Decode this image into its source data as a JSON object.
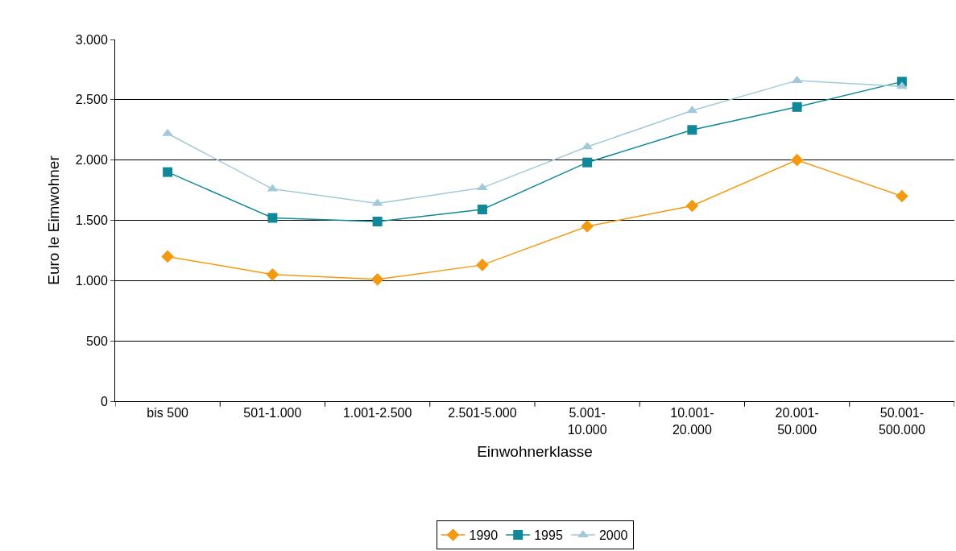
{
  "chart_data": {
    "type": "line",
    "xlabel": "Einwohnerklasse",
    "ylabel": "Euro le Eimwohner",
    "categories": [
      "bis 500",
      "501-1.000",
      "1.001-2.500",
      "2.501-5.000",
      "5.001-10.000",
      "10.001-20.000",
      "20.001-50.000",
      "50.001-500.000"
    ],
    "series": [
      {
        "name": "1990",
        "color": "#f39a12",
        "marker": "diamond",
        "values": [
          1200,
          1050,
          1010,
          1130,
          1450,
          1620,
          2000,
          1700
        ]
      },
      {
        "name": "1995",
        "color": "#10889a",
        "marker": "square",
        "values": [
          1900,
          1520,
          1490,
          1590,
          1980,
          2250,
          2440,
          2650
        ]
      },
      {
        "name": "2000",
        "color": "#a3c9d8",
        "marker": "triangle",
        "values": [
          2220,
          1760,
          1640,
          1770,
          2110,
          2410,
          2660,
          2610
        ]
      }
    ],
    "ylim": [
      0,
      3000
    ],
    "yticks": [
      {
        "value": 0,
        "label": "0"
      },
      {
        "value": 500,
        "label": "500"
      },
      {
        "value": 1000,
        "label": "1.000"
      },
      {
        "value": 1500,
        "label": "1.500"
      },
      {
        "value": 2000,
        "label": "2.000"
      },
      {
        "value": 2500,
        "label": "2.500"
      },
      {
        "value": 3000,
        "label": "3.000"
      }
    ],
    "grid": "y",
    "legend": "bottom",
    "line_style": "solid"
  }
}
